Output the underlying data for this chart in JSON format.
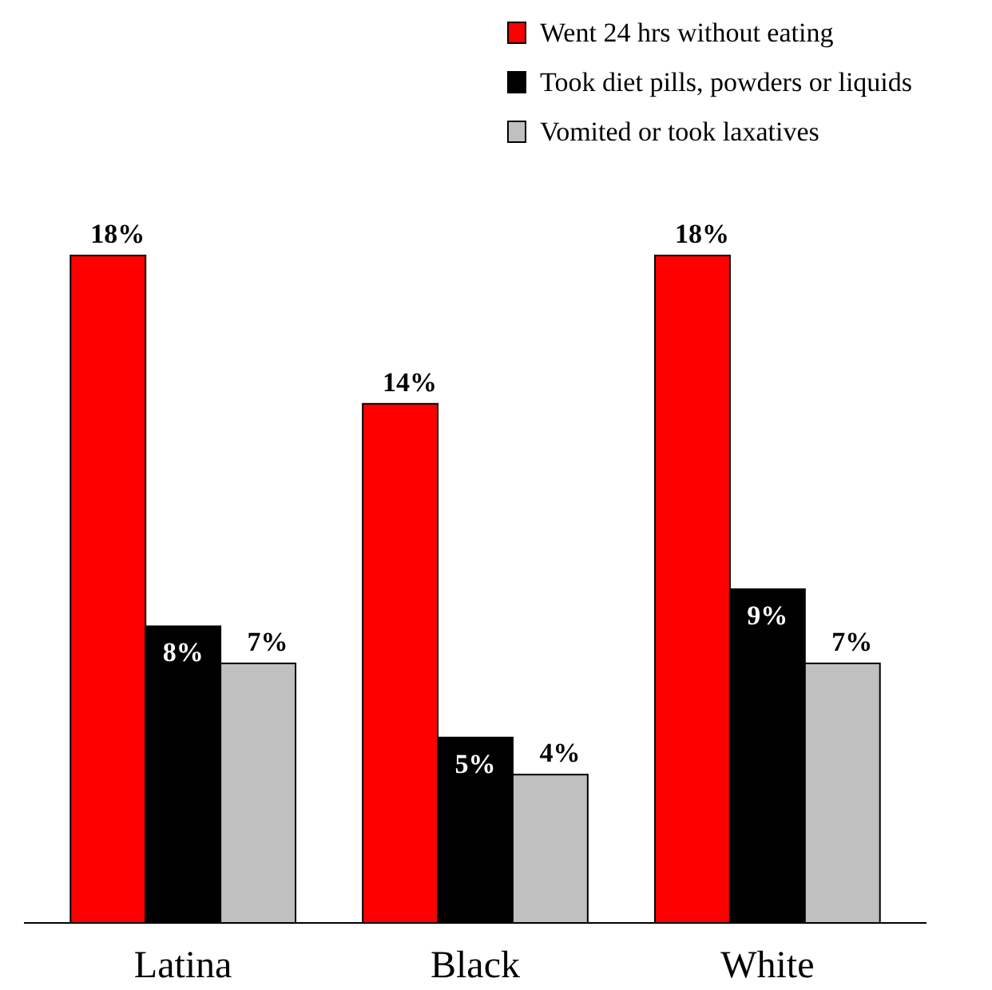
{
  "chart_data": {
    "type": "bar",
    "categories": [
      "Latina",
      "Black",
      "White"
    ],
    "series": [
      {
        "name": "Went 24 hrs without eating",
        "color": "#ff0000",
        "values": [
          18,
          14,
          18
        ],
        "value_labels": [
          "18%",
          "14%",
          "18%"
        ]
      },
      {
        "name": "Took diet pills, powders or liquids",
        "color": "#000000",
        "values": [
          8,
          5,
          9
        ],
        "value_labels": [
          "8%",
          "5%",
          "9%"
        ]
      },
      {
        "name": "Vomited or took laxatives",
        "color": "#c0c0c0",
        "values": [
          7,
          4,
          7
        ],
        "value_labels": [
          "7%",
          "4%",
          "7%"
        ]
      }
    ],
    "legend": "top right"
  }
}
